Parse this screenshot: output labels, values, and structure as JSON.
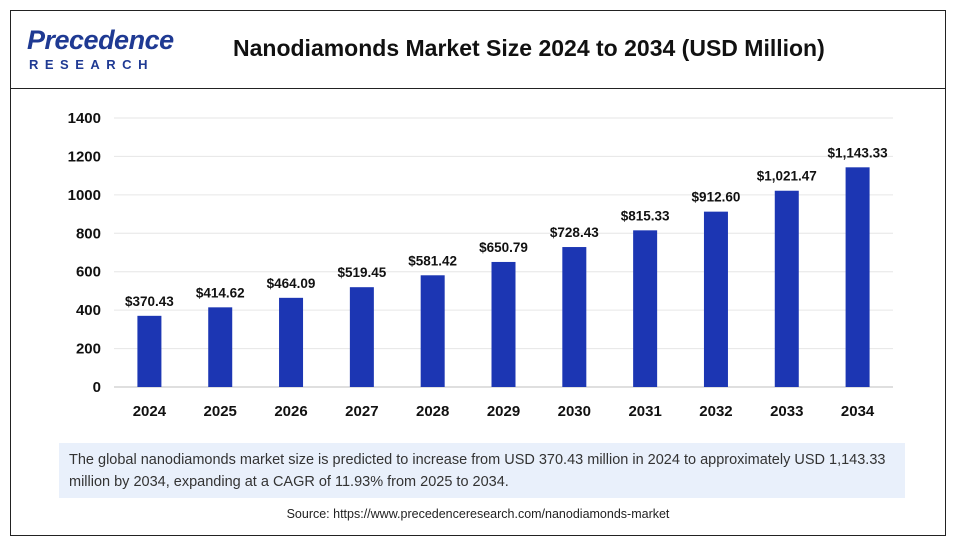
{
  "brand": {
    "logo_main": "Precedence",
    "logo_sub": "RESEARCH",
    "color": "#1f3a93"
  },
  "header": {
    "title": "Nanodiamonds Market Size 2024 to 2034 (USD Million)"
  },
  "chart_data": {
    "type": "bar",
    "title": "Nanodiamonds Market Size 2024 to 2034 (USD Million)",
    "categories": [
      "2024",
      "2025",
      "2026",
      "2027",
      "2028",
      "2029",
      "2030",
      "2031",
      "2032",
      "2033",
      "2034"
    ],
    "values": [
      370.43,
      414.62,
      464.09,
      519.45,
      581.42,
      650.79,
      728.43,
      815.33,
      912.6,
      1021.47,
      1143.33
    ],
    "data_labels": [
      "$370.43",
      "$414.62",
      "$464.09",
      "$519.45",
      "$581.42",
      "$650.79",
      "$728.43",
      "$815.33",
      "$912.60",
      "$1,021.47",
      "$1,143.33"
    ],
    "yticks": [
      0,
      200,
      400,
      600,
      800,
      1000,
      1200,
      1400
    ],
    "ylim": [
      0,
      1400
    ],
    "xlabel": "",
    "ylabel": "",
    "grid": true,
    "bar_color": "#1c36b3"
  },
  "description": "The global nanodiamonds market size is predicted to increase from USD 370.43 million in 2024 to approximately USD 1,143.33 million by 2034, expanding at a CAGR of 11.93% from 2025 to 2034.",
  "source": "Source: https://www.precedenceresearch.com/nanodiamonds-market"
}
